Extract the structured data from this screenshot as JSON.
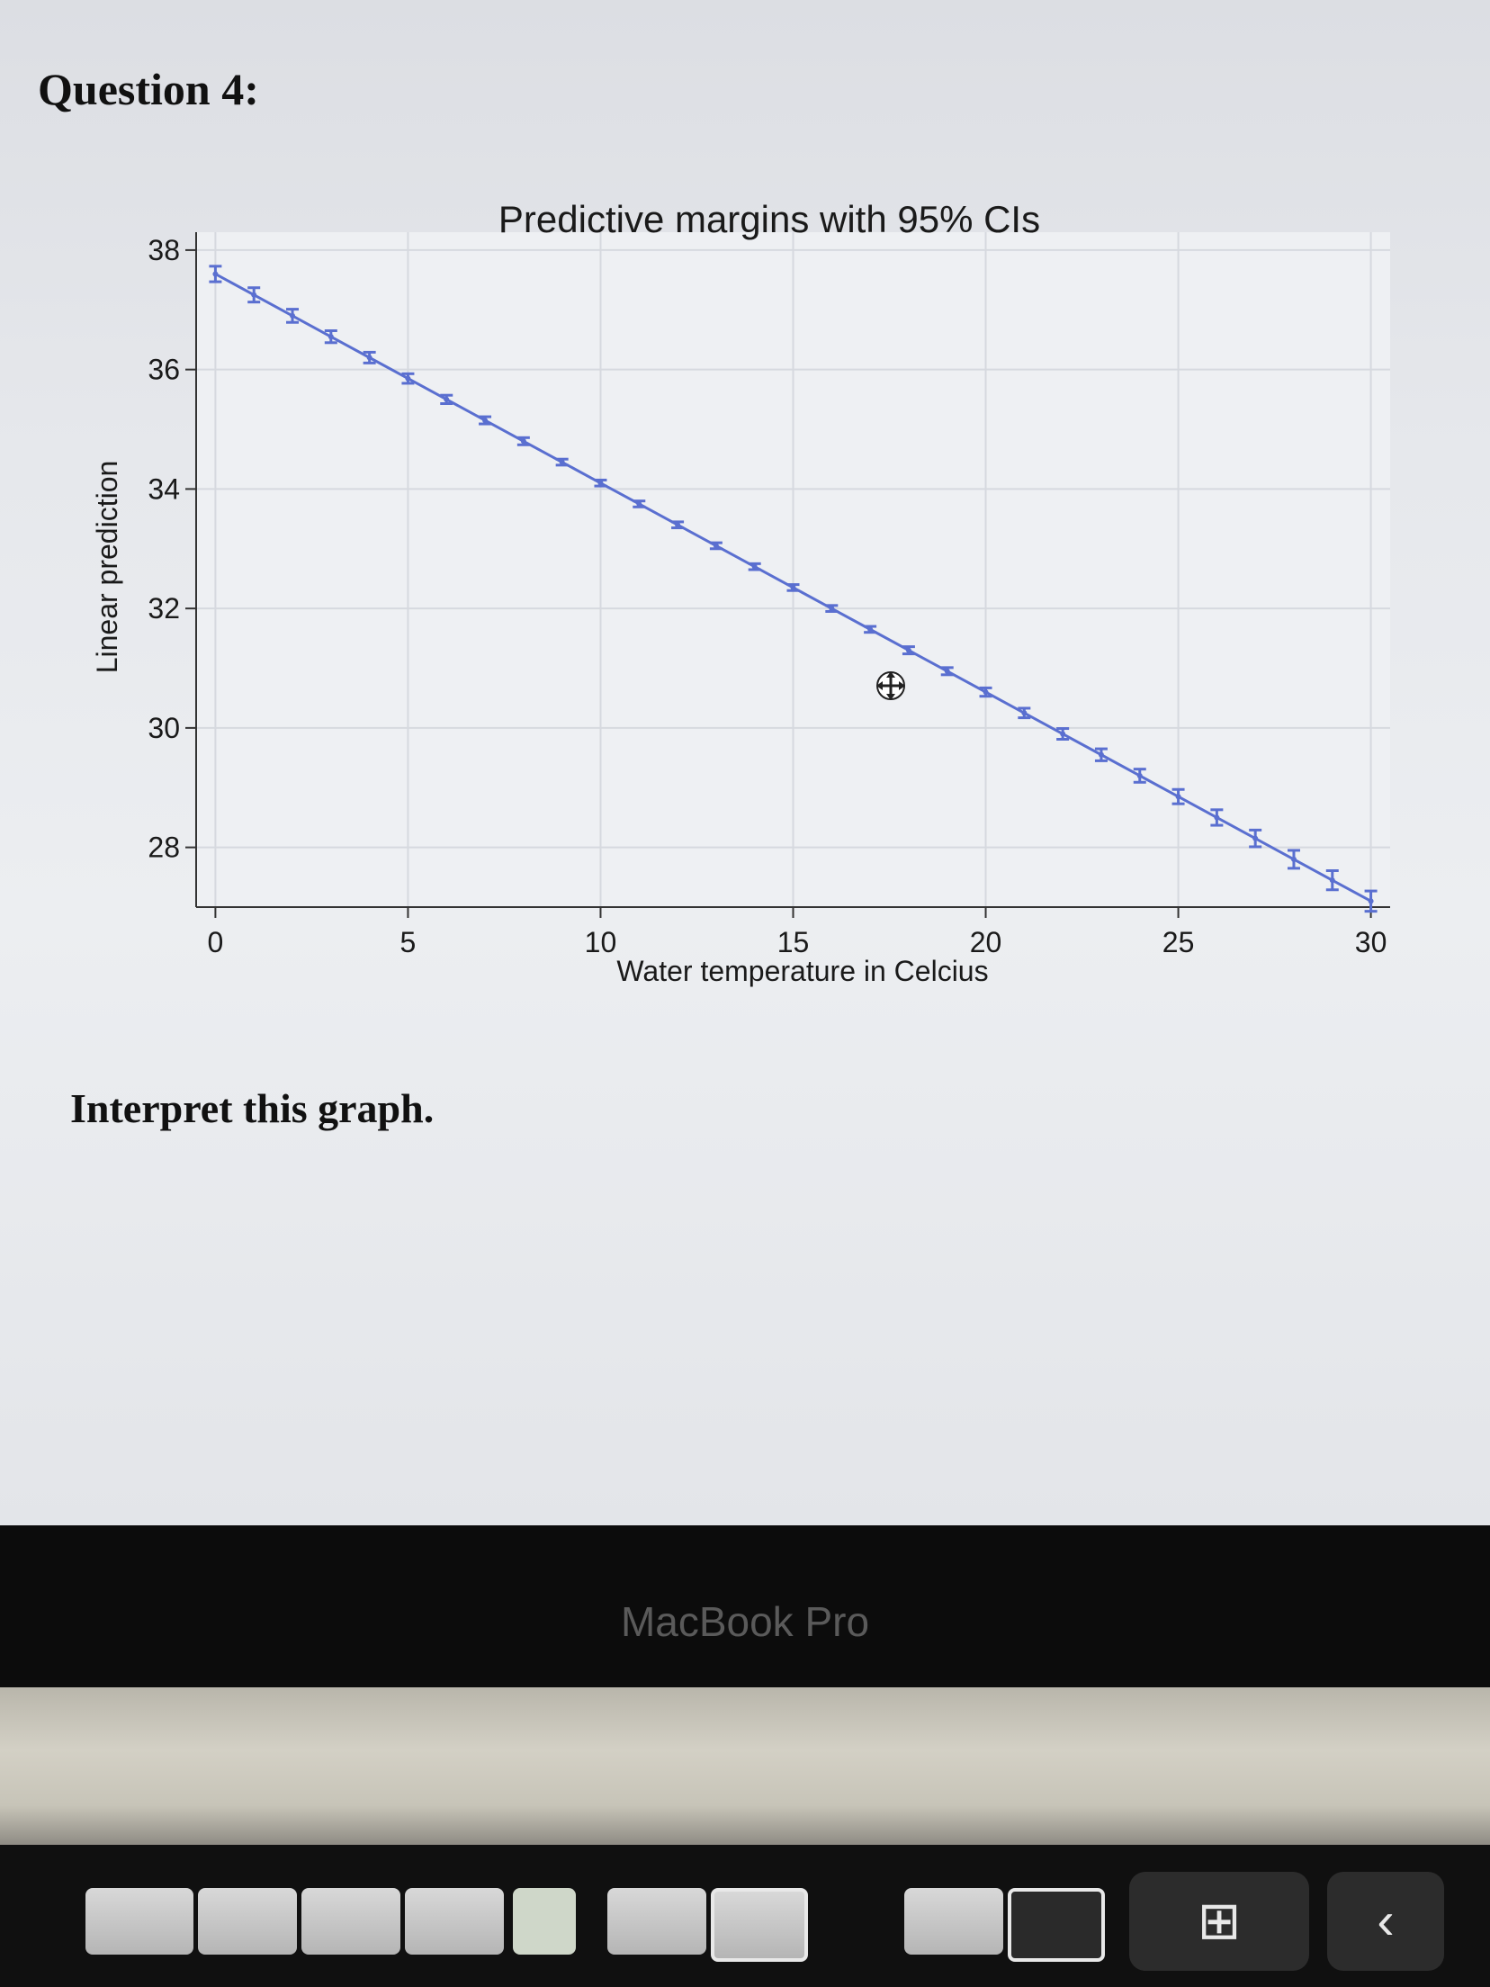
{
  "question": {
    "title": "Question 4:",
    "prompt": "Interpret this graph."
  },
  "device": {
    "label": "MacBook Pro"
  },
  "colors": {
    "series": "#5a6fd0",
    "axis": "#333333"
  },
  "icons": {
    "cursor": "move-cursor-icon",
    "touchbar_add": "add-window-icon",
    "touchbar_back": "chevron-left-icon"
  },
  "chart_data": {
    "type": "line",
    "title": "Predictive margins with 95% CIs",
    "xlabel": "Water temperature in Celcius",
    "ylabel": "Linear prediction",
    "xlim": [
      -0.5,
      30.5
    ],
    "ylim": [
      27,
      38.3
    ],
    "xticks": [
      "0",
      "5",
      "10",
      "15",
      "20",
      "25",
      "30"
    ],
    "yticks": [
      "28",
      "30",
      "32",
      "34",
      "36",
      "38"
    ],
    "grid": true,
    "series": [
      {
        "x": [
          0,
          1,
          2,
          3,
          4,
          5,
          6,
          7,
          8,
          9,
          10,
          11,
          12,
          13,
          14,
          15,
          16,
          17,
          18,
          19,
          20,
          21,
          22,
          23,
          24,
          25,
          26,
          27,
          28,
          29,
          30
        ],
        "values": [
          37.6,
          37.25,
          36.9,
          36.55,
          36.2,
          35.85,
          35.5,
          35.15,
          34.8,
          34.45,
          34.1,
          33.75,
          33.4,
          33.05,
          32.7,
          32.35,
          32.0,
          31.65,
          31.3,
          30.95,
          30.6,
          30.25,
          29.9,
          29.55,
          29.2,
          28.85,
          28.5,
          28.15,
          27.8,
          27.45,
          27.1
        ],
        "ci_halfwidth": [
          0.13,
          0.12,
          0.11,
          0.1,
          0.09,
          0.08,
          0.07,
          0.06,
          0.06,
          0.05,
          0.05,
          0.05,
          0.05,
          0.05,
          0.05,
          0.05,
          0.05,
          0.05,
          0.06,
          0.06,
          0.07,
          0.08,
          0.09,
          0.1,
          0.11,
          0.12,
          0.13,
          0.14,
          0.15,
          0.16,
          0.17
        ]
      }
    ]
  }
}
